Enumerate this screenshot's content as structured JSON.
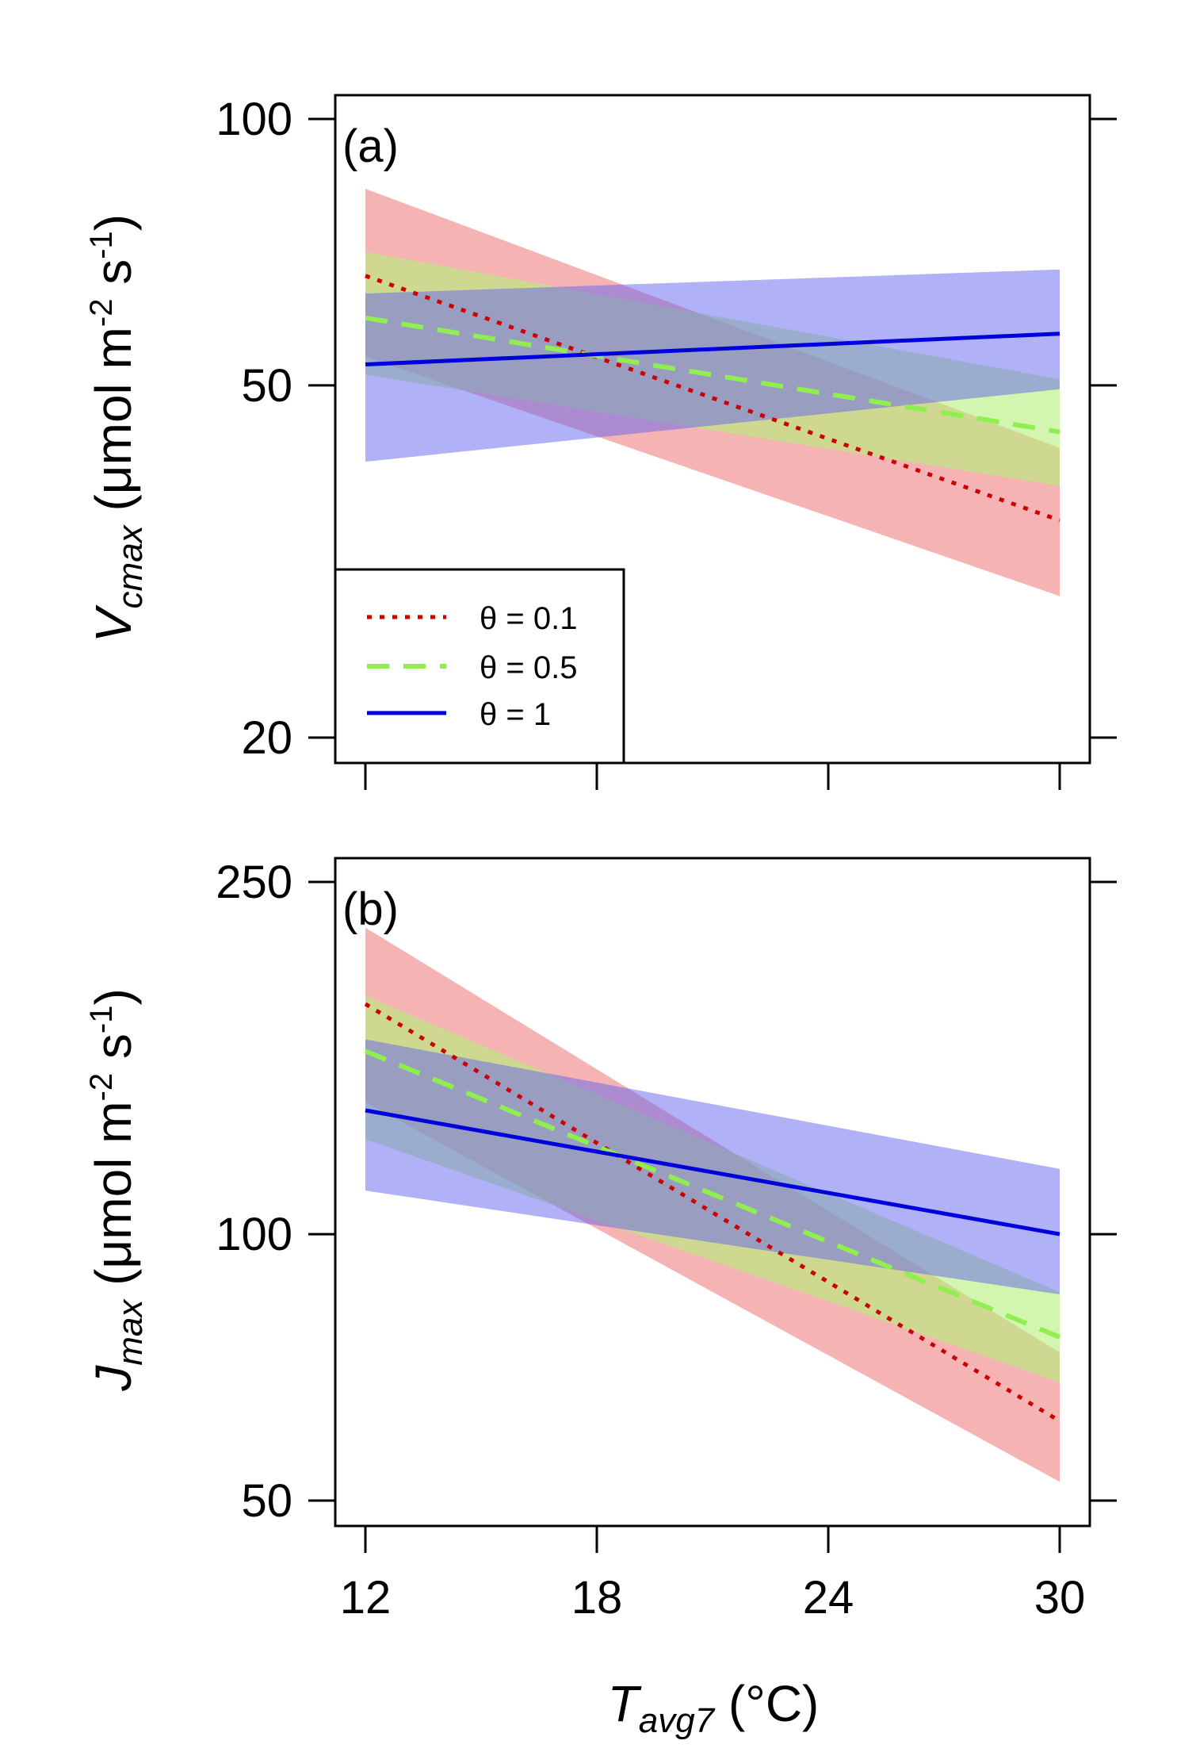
{
  "colors": {
    "theta_0_1": "#cc0000",
    "theta_0_5": "#90ee50",
    "theta_1": "#0000dd",
    "band_0_1": "#f08080",
    "band_0_5": "#b4f07a",
    "band_1": "#6464f0"
  },
  "chart_data": [
    {
      "type": "line",
      "panel_label": "(a)",
      "y_scale": "log",
      "xlim": [
        12,
        30
      ],
      "ylim": [
        20,
        100
      ],
      "x_ticks": [
        "12",
        "18",
        "24",
        "30"
      ],
      "y_ticks": [
        "20",
        "50",
        "100"
      ],
      "y_tick_values": [
        20,
        50,
        100
      ],
      "ylabel": {
        "main": "V",
        "sub": "cmax",
        "units": " (μmol m",
        "exp1": "-2",
        "mid": " s",
        "exp2": "-1",
        "close": ")"
      },
      "legend": {
        "position": "bottom-left",
        "entries": [
          "θ = 0.1",
          "θ = 0.5",
          "θ = 1"
        ]
      },
      "series": [
        {
          "name": "θ = 0.1",
          "style": "dotted",
          "x": [
            12,
            30
          ],
          "y": [
            66.5,
            35.2
          ],
          "lower": [
            53.9,
            28.9
          ],
          "upper": [
            83.4,
            42.5
          ]
        },
        {
          "name": "θ = 0.5",
          "style": "dashed",
          "x": [
            12,
            30
          ],
          "y": [
            59.6,
            44.3
          ],
          "lower": [
            51.4,
            38.5
          ],
          "upper": [
            70.8,
            50.8
          ]
        },
        {
          "name": "θ = 1",
          "style": "solid",
          "x": [
            12,
            30
          ],
          "y": [
            52.8,
            57.2
          ],
          "lower": [
            41.0,
            49.5
          ],
          "upper": [
            63.5,
            67.6
          ]
        }
      ]
    },
    {
      "type": "line",
      "panel_label": "(b)",
      "y_scale": "log",
      "xlim": [
        12,
        30
      ],
      "ylim": [
        50,
        250
      ],
      "x_ticks": [
        "12",
        "18",
        "24",
        "30"
      ],
      "y_ticks": [
        "50",
        "100",
        "250"
      ],
      "y_tick_values": [
        50,
        100,
        250
      ],
      "xlabel": {
        "main": "T",
        "sub": "avg7",
        "units": " (°C)"
      },
      "ylabel": {
        "main": "J",
        "sub": "max",
        "units": " (μmol m",
        "exp1": "-2",
        "mid": " s",
        "exp2": "-1",
        "close": ")"
      },
      "series": [
        {
          "name": "θ = 0.1",
          "style": "dotted",
          "x": [
            12,
            30
          ],
          "y": [
            182,
            61.5
          ],
          "lower": [
            141,
            52.5
          ],
          "upper": [
            222,
            73.5
          ]
        },
        {
          "name": "θ = 0.5",
          "style": "dashed",
          "x": [
            12,
            30
          ],
          "y": [
            161,
            76.5
          ],
          "lower": [
            128,
            68.0
          ],
          "upper": [
            186,
            86.0
          ]
        },
        {
          "name": "θ = 1",
          "style": "solid",
          "x": [
            12,
            30
          ],
          "y": [
            138,
            100
          ],
          "lower": [
            112,
            85.5
          ],
          "upper": [
            166,
            118.5
          ]
        }
      ]
    }
  ]
}
